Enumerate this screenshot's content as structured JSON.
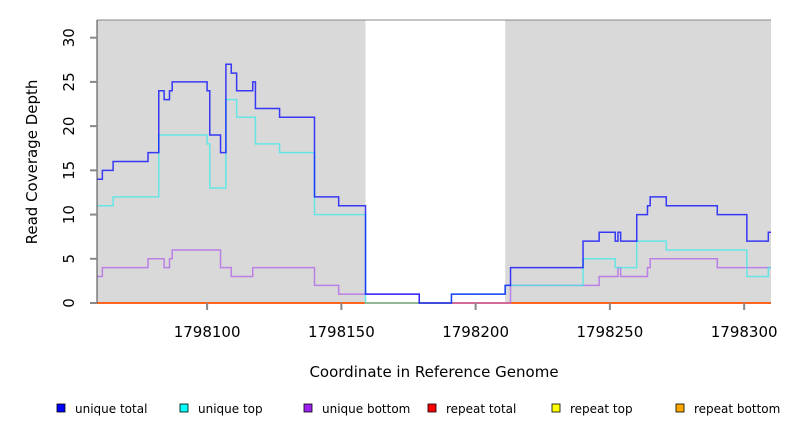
{
  "chart_data": {
    "type": "line",
    "step": true,
    "xlabel": "Coordinate in Reference Genome",
    "ylabel": "Read Coverage Depth",
    "xlim": [
      1798059,
      1798310
    ],
    "ylim": [
      0,
      32
    ],
    "xticks": [
      1798100,
      1798150,
      1798200,
      1798250,
      1798300
    ],
    "yticks": [
      0,
      5,
      10,
      15,
      20,
      25,
      30
    ],
    "shaded_regions": [
      [
        1798059,
        1798159
      ],
      [
        1798211,
        1798310
      ]
    ],
    "legend_position": "bottom",
    "series": [
      {
        "name": "unique total",
        "color": "#0000ff",
        "steps": [
          [
            1798059,
            14
          ],
          [
            1798061,
            15
          ],
          [
            1798065,
            16
          ],
          [
            1798078,
            17
          ],
          [
            1798082,
            24
          ],
          [
            1798084,
            23
          ],
          [
            1798086,
            24
          ],
          [
            1798087,
            25
          ],
          [
            1798100,
            24
          ],
          [
            1798101,
            19
          ],
          [
            1798105,
            17
          ],
          [
            1798107,
            27
          ],
          [
            1798109,
            26
          ],
          [
            1798111,
            24
          ],
          [
            1798117,
            25
          ],
          [
            1798118,
            22
          ],
          [
            1798127,
            21
          ],
          [
            1798140,
            12
          ],
          [
            1798149,
            11
          ],
          [
            1798159,
            1
          ],
          [
            1798179,
            0
          ],
          [
            1798191,
            1
          ],
          [
            1798211,
            2
          ],
          [
            1798213,
            4
          ],
          [
            1798240,
            7
          ],
          [
            1798246,
            8
          ],
          [
            1798252,
            7
          ],
          [
            1798253,
            8
          ],
          [
            1798254,
            7
          ],
          [
            1798260,
            10
          ],
          [
            1798264,
            11
          ],
          [
            1798265,
            12
          ],
          [
            1798271,
            11
          ],
          [
            1798290,
            10
          ],
          [
            1798301,
            7
          ],
          [
            1798309,
            8
          ]
        ]
      },
      {
        "name": "unique top",
        "color": "#40e8e8",
        "steps": [
          [
            1798059,
            11
          ],
          [
            1798065,
            12
          ],
          [
            1798082,
            19
          ],
          [
            1798100,
            18
          ],
          [
            1798101,
            13
          ],
          [
            1798107,
            23
          ],
          [
            1798111,
            21
          ],
          [
            1798118,
            18
          ],
          [
            1798127,
            17
          ],
          [
            1798140,
            10
          ],
          [
            1798159,
            0
          ],
          [
            1798191,
            1
          ],
          [
            1798211,
            2
          ],
          [
            1798240,
            5
          ],
          [
            1798252,
            4
          ],
          [
            1798260,
            7
          ],
          [
            1798271,
            6
          ],
          [
            1798301,
            3
          ],
          [
            1798309,
            4
          ]
        ]
      },
      {
        "name": "unique bottom",
        "color": "#b060e8",
        "steps": [
          [
            1798059,
            3
          ],
          [
            1798061,
            4
          ],
          [
            1798078,
            5
          ],
          [
            1798084,
            4
          ],
          [
            1798086,
            5
          ],
          [
            1798087,
            6
          ],
          [
            1798105,
            4
          ],
          [
            1798109,
            3
          ],
          [
            1798117,
            4
          ],
          [
            1798140,
            2
          ],
          [
            1798149,
            1
          ],
          [
            1798179,
            0
          ],
          [
            1798213,
            2
          ],
          [
            1798246,
            3
          ],
          [
            1798253,
            4
          ],
          [
            1798254,
            3
          ],
          [
            1798264,
            4
          ],
          [
            1798265,
            5
          ],
          [
            1798290,
            4
          ]
        ]
      },
      {
        "name": "repeat total",
        "color": "#ff0000",
        "steps": [
          [
            1798059,
            0
          ]
        ]
      },
      {
        "name": "repeat top",
        "color": "#ffff00",
        "steps": [
          [
            1798059,
            0
          ]
        ]
      },
      {
        "name": "repeat bottom",
        "color": "#ffa500",
        "steps": [
          [
            1798059,
            0
          ]
        ]
      }
    ],
    "legend_colors": [
      "#0000ff",
      "#00ffff",
      "#a020f0",
      "#ff0000",
      "#ffff00",
      "#ffa500"
    ]
  }
}
